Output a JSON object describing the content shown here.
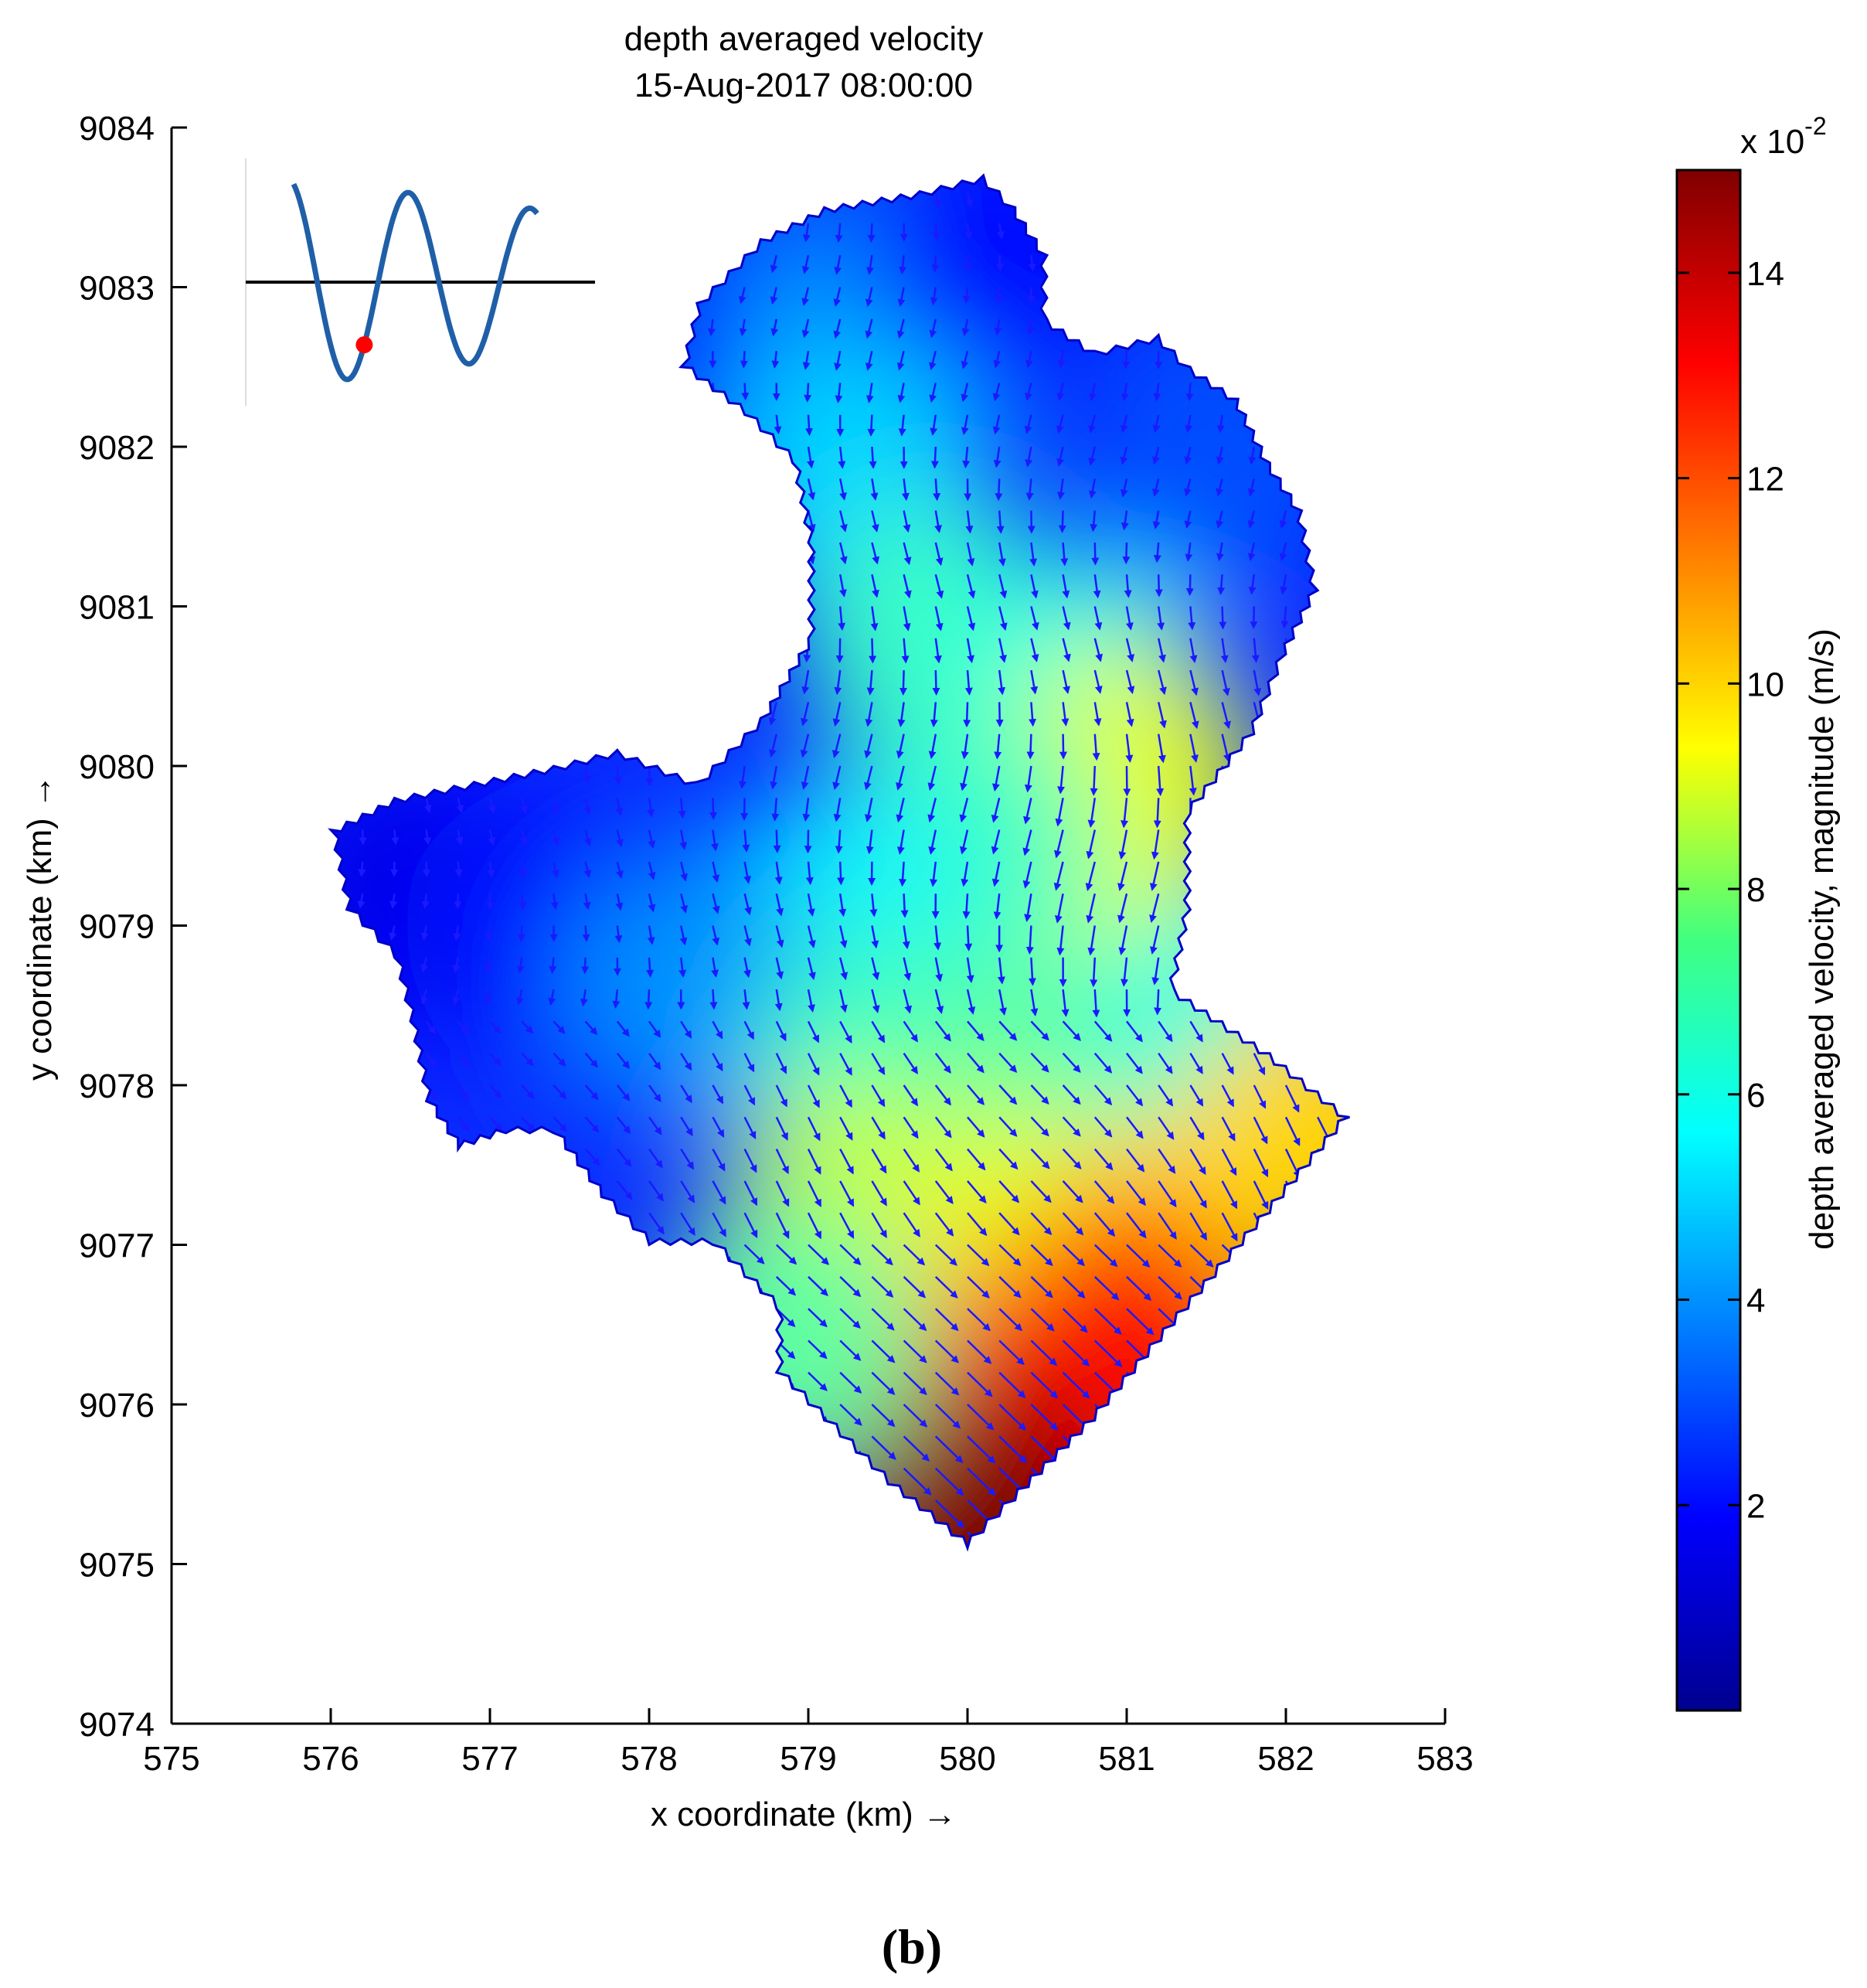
{
  "figure": {
    "panel_label": "(b)"
  },
  "chart_data": {
    "type": "heatmap",
    "title": "depth averaged velocity",
    "subtitle": "15-Aug-2017 08:00:00",
    "xlabel": "x coordinate (km) →",
    "ylabel": "y coordinate (km) →",
    "xlim": [
      575,
      583
    ],
    "ylim": [
      9074,
      9084
    ],
    "x_ticks": [
      "575",
      "576",
      "577",
      "578",
      "579",
      "580",
      "581",
      "582",
      "583"
    ],
    "y_ticks": [
      "9074",
      "9075",
      "9076",
      "9077",
      "9078",
      "9079",
      "9080",
      "9081",
      "9082",
      "9083",
      "9084"
    ],
    "colorbar": {
      "label": "depth averaged velocity, magnitude (m/s)",
      "exponent_label": "x 10",
      "exponent": "-2",
      "range": [
        0,
        15
      ],
      "ticks": [
        "2",
        "4",
        "6",
        "8",
        "10",
        "12",
        "14"
      ],
      "colormap": "jet"
    },
    "domain_outline_km": [
      [
        579.7,
        9083.6
      ],
      [
        580.1,
        9083.7
      ],
      [
        580.3,
        9083.5
      ],
      [
        580.5,
        9083.2
      ],
      [
        580.5,
        9082.8
      ],
      [
        580.8,
        9082.6
      ],
      [
        581.2,
        9082.7
      ],
      [
        581.4,
        9082.5
      ],
      [
        581.7,
        9082.3
      ],
      [
        581.9,
        9081.9
      ],
      [
        582.1,
        9081.6
      ],
      [
        582.2,
        9081.1
      ],
      [
        582.0,
        9080.7
      ],
      [
        581.8,
        9080.2
      ],
      [
        581.4,
        9079.7
      ],
      [
        581.4,
        9079.1
      ],
      [
        581.3,
        9078.6
      ],
      [
        581.9,
        9078.2
      ],
      [
        582.4,
        9077.8
      ],
      [
        581.9,
        9077.2
      ],
      [
        581.3,
        9076.5
      ],
      [
        580.8,
        9075.9
      ],
      [
        580.3,
        9075.4
      ],
      [
        580.0,
        9075.1
      ],
      [
        579.5,
        9075.5
      ],
      [
        579.1,
        9075.9
      ],
      [
        578.8,
        9076.2
      ],
      [
        578.8,
        9076.6
      ],
      [
        578.4,
        9077.0
      ],
      [
        578.0,
        9077.0
      ],
      [
        577.7,
        9077.3
      ],
      [
        577.4,
        9077.7
      ],
      [
        577.1,
        9077.7
      ],
      [
        576.8,
        9077.6
      ],
      [
        576.6,
        9077.9
      ],
      [
        576.5,
        9078.4
      ],
      [
        576.4,
        9078.8
      ],
      [
        576.1,
        9079.1
      ],
      [
        576.0,
        9079.6
      ],
      [
        576.4,
        9079.8
      ],
      [
        576.9,
        9079.9
      ],
      [
        577.4,
        9080.0
      ],
      [
        577.8,
        9080.1
      ],
      [
        578.3,
        9079.9
      ],
      [
        578.7,
        9080.3
      ],
      [
        579.0,
        9080.8
      ],
      [
        579.0,
        9081.4
      ],
      [
        578.9,
        9081.9
      ],
      [
        578.6,
        9082.2
      ],
      [
        578.2,
        9082.5
      ],
      [
        578.3,
        9082.9
      ],
      [
        578.7,
        9083.3
      ],
      [
        579.1,
        9083.5
      ]
    ],
    "velocity_field": {
      "samples": [
        {
          "x": 576.5,
          "y": 9079.2,
          "speed": 1.5
        },
        {
          "x": 577.3,
          "y": 9079.0,
          "speed": 2.0
        },
        {
          "x": 578.5,
          "y": 9082.7,
          "speed": 2.5
        },
        {
          "x": 579.4,
          "y": 9082.8,
          "speed": 4.0
        },
        {
          "x": 580.2,
          "y": 9083.2,
          "speed": 2.0
        },
        {
          "x": 581.6,
          "y": 9082.0,
          "speed": 3.0
        },
        {
          "x": 579.3,
          "y": 9081.8,
          "speed": 5.0
        },
        {
          "x": 579.8,
          "y": 9080.8,
          "speed": 6.5
        },
        {
          "x": 580.7,
          "y": 9080.5,
          "speed": 6.0
        },
        {
          "x": 581.0,
          "y": 9079.9,
          "speed": 9.0
        },
        {
          "x": 580.8,
          "y": 9079.2,
          "speed": 9.0
        },
        {
          "x": 580.0,
          "y": 9079.5,
          "speed": 6.5
        },
        {
          "x": 579.2,
          "y": 9079.0,
          "speed": 5.5
        },
        {
          "x": 578.3,
          "y": 9078.6,
          "speed": 4.0
        },
        {
          "x": 579.5,
          "y": 9078.2,
          "speed": 6.5
        },
        {
          "x": 580.5,
          "y": 9078.0,
          "speed": 7.0
        },
        {
          "x": 581.6,
          "y": 9078.3,
          "speed": 6.0
        },
        {
          "x": 582.2,
          "y": 9077.7,
          "speed": 10.0
        },
        {
          "x": 579.3,
          "y": 9077.2,
          "speed": 8.5
        },
        {
          "x": 580.4,
          "y": 9077.0,
          "speed": 9.0
        },
        {
          "x": 581.3,
          "y": 9077.0,
          "speed": 10.0
        },
        {
          "x": 579.5,
          "y": 9076.3,
          "speed": 10.0
        },
        {
          "x": 580.5,
          "y": 9076.0,
          "speed": 12.5
        },
        {
          "x": 581.0,
          "y": 9076.4,
          "speed": 13.0
        },
        {
          "x": 580.0,
          "y": 9075.5,
          "speed": 13.5
        },
        {
          "x": 580.1,
          "y": 9075.2,
          "speed": 15.0
        },
        {
          "x": 578.9,
          "y": 9076.4,
          "speed": 7.0
        }
      ],
      "arrow_color": "#1a1aff"
    },
    "inset": {
      "type": "line",
      "description_series": "tidal water level",
      "marker_color": "#ff0000",
      "line_color": "#1f5fa8"
    }
  }
}
